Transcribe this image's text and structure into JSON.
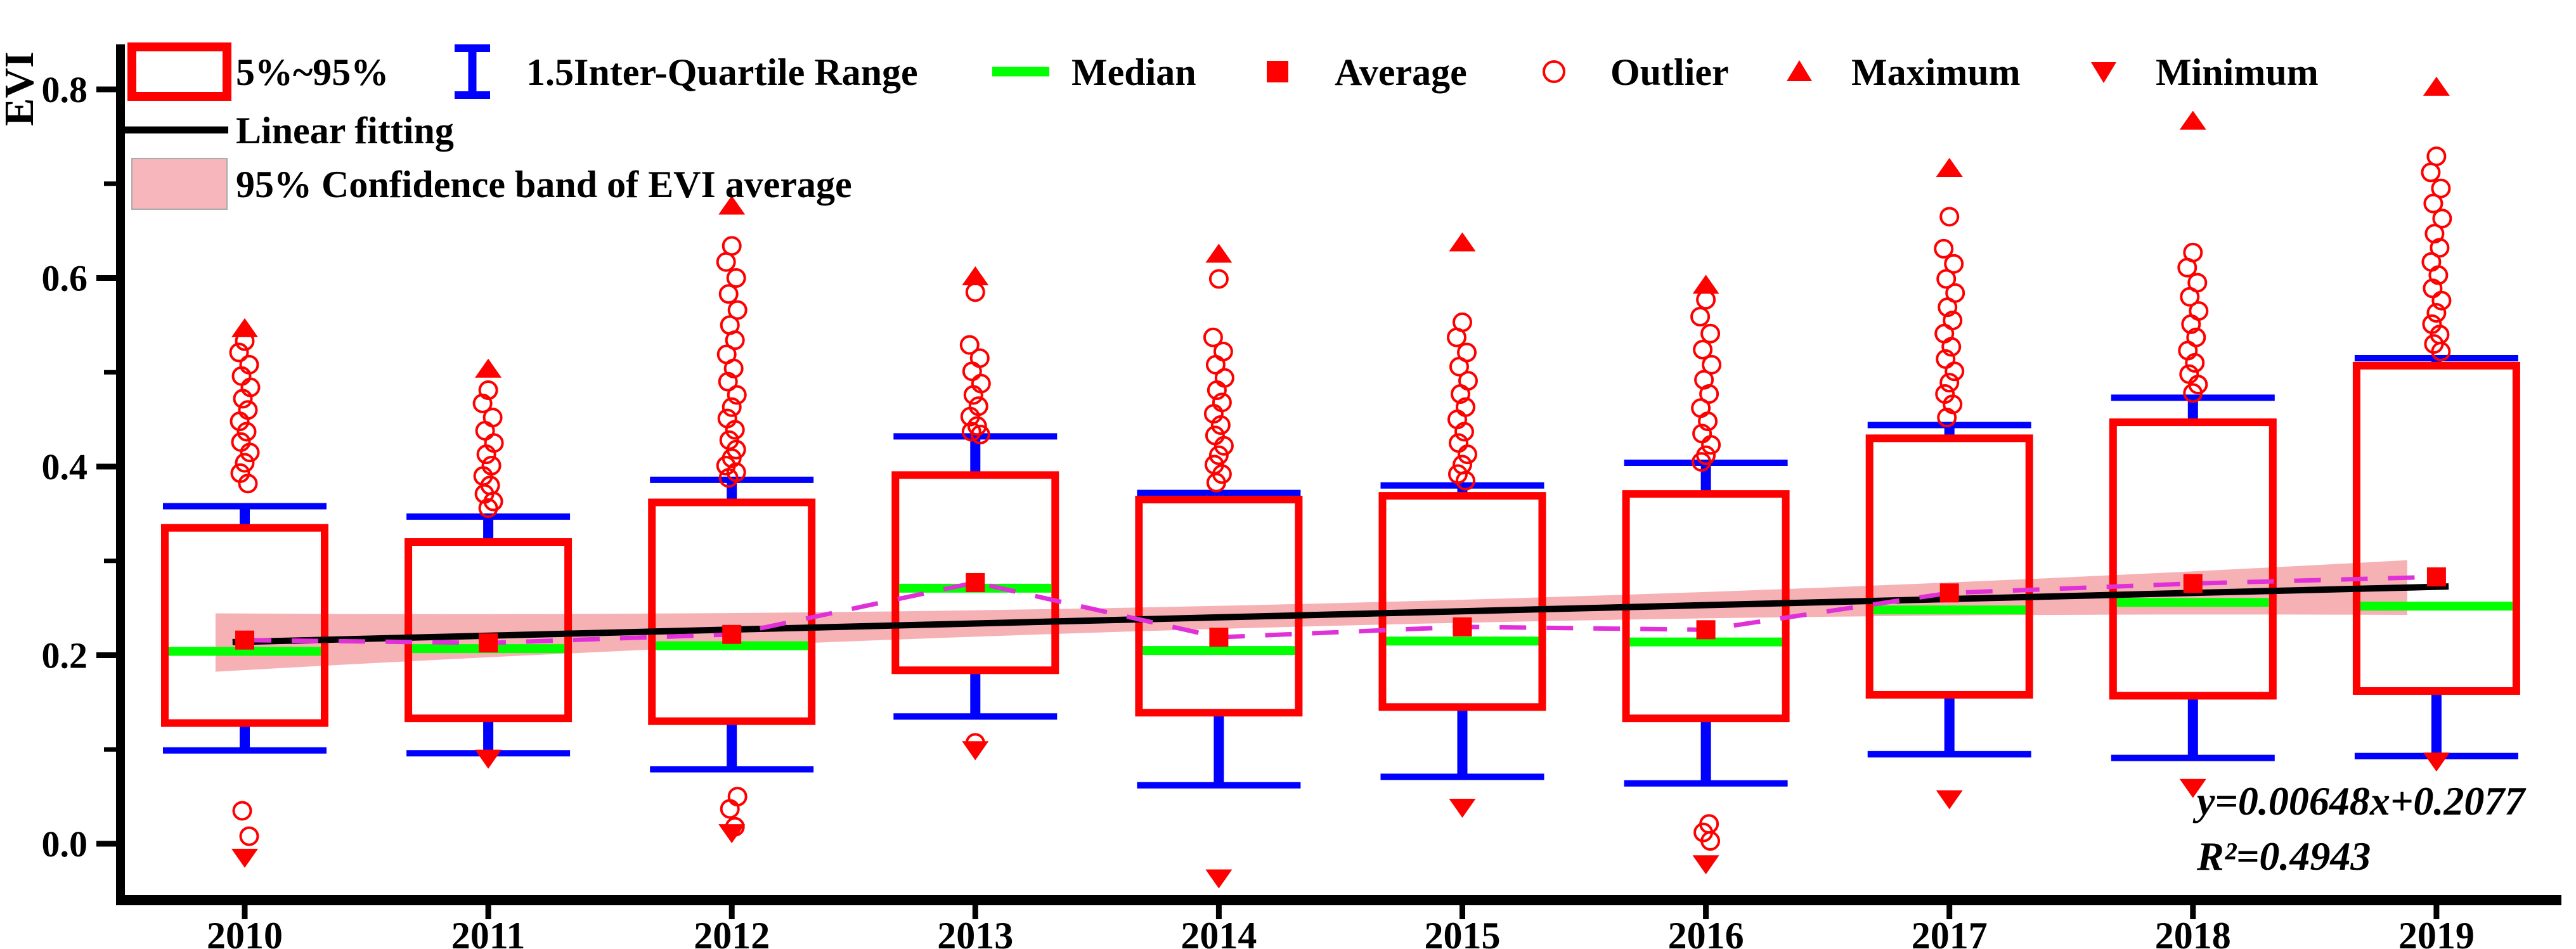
{
  "colors": {
    "box_color": "#ff0000",
    "whisker_color": "#0000ff",
    "median_color": "#00ff00",
    "average_color": "#ff0000",
    "outlier_color": "#ff0000",
    "extreme_color": "#ff0000",
    "fit_color": "#000000",
    "band_fill": "#f5a9ad",
    "band_legend_fill": "#f6b6bb",
    "average_line_color": "#e030d8",
    "axis_color": "#000000",
    "text_color": "#000000"
  },
  "legend": {
    "row1": [
      {
        "marker": "box",
        "label": "5%~95%"
      },
      {
        "marker": "errorbar",
        "label": "1.5Inter-Quartile Range"
      },
      {
        "marker": "line-green",
        "label": "Median"
      },
      {
        "marker": "square",
        "label": "Average"
      },
      {
        "marker": "circle",
        "label": "Outlier"
      },
      {
        "marker": "triangle-up",
        "label": "Maximum"
      },
      {
        "marker": "triangle-down",
        "label": "Minimum"
      }
    ],
    "row2": [
      {
        "marker": "line-black",
        "label": "Linear fitting"
      }
    ],
    "row3": [
      {
        "marker": "band",
        "label": "95% Confidence band of EVI average"
      }
    ]
  },
  "annotation": {
    "equation": "y=0.00648x+0.2077",
    "r_squared": "R²=0.4943"
  },
  "chart_data": {
    "type": "box",
    "title": "",
    "xlabel": "",
    "ylabel": "EVI",
    "grid": false,
    "ylim": [
      -0.06,
      0.848
    ],
    "y_major_ticks": [
      "0.0",
      "0.2",
      "0.4",
      "0.6",
      "0.8"
    ],
    "y_major_values": [
      0.0,
      0.2,
      0.4,
      0.6,
      0.8
    ],
    "y_minor_values": [
      0.1,
      0.3,
      0.5,
      0.7
    ],
    "x_categories": [
      "2010",
      "2011",
      "2012",
      "2013",
      "2014",
      "2015",
      "2016",
      "2017",
      "2018",
      "2019"
    ],
    "box_definition": "box spans 5th to 95th percentile; blue whiskers are 1.5 inter-quartile range",
    "series": [
      {
        "year": "2010",
        "p5": 0.128,
        "p95": 0.335,
        "median": 0.204,
        "average": 0.216,
        "whisker_low": 0.099,
        "whisker_high": 0.358,
        "maximum": 0.546,
        "minimum": -0.014,
        "outliers_high": [
          0.533,
          0.521,
          0.508,
          0.496,
          0.484,
          0.472,
          0.46,
          0.448,
          0.437,
          0.426,
          0.415,
          0.404,
          0.393,
          0.382
        ],
        "outliers_low": [
          0.035,
          0.008
        ]
      },
      {
        "year": "2011",
        "p5": 0.133,
        "p95": 0.32,
        "median": 0.207,
        "average": 0.213,
        "whisker_low": 0.096,
        "whisker_high": 0.347,
        "maximum": 0.503,
        "minimum": 0.091,
        "outliers_high": [
          0.481,
          0.467,
          0.452,
          0.438,
          0.425,
          0.413,
          0.401,
          0.39,
          0.38,
          0.371,
          0.363,
          0.356
        ],
        "outliers_low": []
      },
      {
        "year": "2012",
        "p5": 0.13,
        "p95": 0.362,
        "median": 0.21,
        "average": 0.222,
        "whisker_low": 0.079,
        "whisker_high": 0.386,
        "maximum": 0.676,
        "minimum": 0.012,
        "outliers_high": [
          0.634,
          0.617,
          0.6,
          0.583,
          0.566,
          0.55,
          0.534,
          0.519,
          0.504,
          0.49,
          0.476,
          0.463,
          0.451,
          0.439,
          0.428,
          0.418,
          0.409,
          0.401,
          0.394,
          0.388
        ],
        "outliers_low": [
          0.05,
          0.037,
          0.018
        ]
      },
      {
        "year": "2013",
        "p5": 0.184,
        "p95": 0.391,
        "median": 0.271,
        "average": 0.277,
        "whisker_low": 0.135,
        "whisker_high": 0.432,
        "maximum": 0.601,
        "minimum": 0.1,
        "outliers_high": [
          0.585,
          0.529,
          0.515,
          0.501,
          0.488,
          0.476,
          0.464,
          0.453,
          0.443,
          0.437,
          0.434
        ],
        "outliers_low": [
          0.107
        ]
      },
      {
        "year": "2014",
        "p5": 0.139,
        "p95": 0.365,
        "median": 0.205,
        "average": 0.219,
        "whisker_low": 0.062,
        "whisker_high": 0.372,
        "maximum": 0.625,
        "minimum": -0.036,
        "outliers_high": [
          0.599,
          0.537,
          0.522,
          0.508,
          0.494,
          0.481,
          0.468,
          0.456,
          0.444,
          0.433,
          0.422,
          0.412,
          0.402,
          0.392,
          0.383
        ],
        "outliers_low": []
      },
      {
        "year": "2015",
        "p5": 0.145,
        "p95": 0.369,
        "median": 0.215,
        "average": 0.23,
        "whisker_low": 0.071,
        "whisker_high": 0.38,
        "maximum": 0.637,
        "minimum": 0.039,
        "outliers_high": [
          0.553,
          0.537,
          0.521,
          0.506,
          0.491,
          0.477,
          0.463,
          0.45,
          0.437,
          0.425,
          0.413,
          0.402,
          0.392,
          0.385
        ],
        "outliers_low": []
      },
      {
        "year": "2016",
        "p5": 0.133,
        "p95": 0.371,
        "median": 0.214,
        "average": 0.227,
        "whisker_low": 0.064,
        "whisker_high": 0.404,
        "maximum": 0.592,
        "minimum": -0.021,
        "outliers_high": [
          0.577,
          0.559,
          0.541,
          0.524,
          0.508,
          0.492,
          0.477,
          0.462,
          0.448,
          0.435,
          0.423,
          0.412,
          0.405
        ],
        "outliers_low": [
          0.021,
          0.012,
          0.003
        ]
      },
      {
        "year": "2017",
        "p5": 0.158,
        "p95": 0.43,
        "median": 0.248,
        "average": 0.266,
        "whisker_low": 0.095,
        "whisker_high": 0.444,
        "maximum": 0.716,
        "minimum": 0.048,
        "outliers_high": [
          0.665,
          0.631,
          0.615,
          0.599,
          0.584,
          0.569,
          0.555,
          0.541,
          0.527,
          0.514,
          0.501,
          0.489,
          0.477,
          0.466,
          0.452
        ],
        "outliers_low": []
      },
      {
        "year": "2018",
        "p5": 0.157,
        "p95": 0.447,
        "median": 0.256,
        "average": 0.276,
        "whisker_low": 0.091,
        "whisker_high": 0.473,
        "maximum": 0.766,
        "minimum": 0.06,
        "outliers_high": [
          0.627,
          0.611,
          0.595,
          0.58,
          0.565,
          0.551,
          0.537,
          0.523,
          0.51,
          0.498,
          0.487,
          0.478
        ],
        "outliers_low": []
      },
      {
        "year": "2019",
        "p5": 0.162,
        "p95": 0.507,
        "median": 0.252,
        "average": 0.283,
        "whisker_low": 0.093,
        "whisker_high": 0.515,
        "maximum": 0.802,
        "minimum": 0.088,
        "outliers_high": [
          0.729,
          0.712,
          0.695,
          0.679,
          0.663,
          0.647,
          0.632,
          0.617,
          0.603,
          0.589,
          0.576,
          0.563,
          0.551,
          0.54,
          0.53,
          0.522
        ],
        "outliers_low": []
      }
    ],
    "linear_fit": {
      "slope": 0.00648,
      "intercept": 0.2077,
      "equation": "y=0.00648x+0.2077",
      "r_squared_label": "R²=0.4943",
      "r_squared": 0.4943
    },
    "confidence_band": {
      "label": "95% Confidence band of EVI average",
      "half_width_center": 0.012,
      "half_width_edge": 0.03
    },
    "average_connector": {
      "style": "dashed",
      "connects": "yearly averages"
    },
    "legend_position": "top-left, horizontal rows"
  }
}
